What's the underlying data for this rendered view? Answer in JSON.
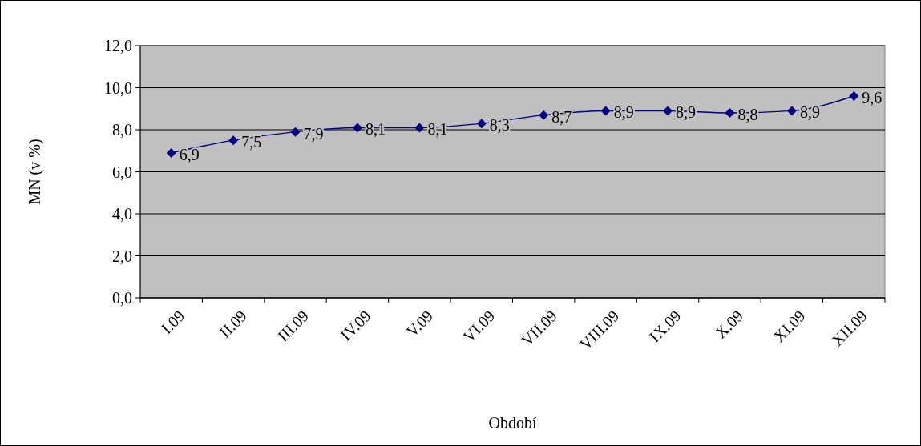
{
  "chart_data": {
    "type": "line",
    "xlabel": "Období",
    "ylabel": "MN (v %)",
    "categories": [
      "I.09",
      "II.09",
      "III.09",
      "IV.09",
      "V.09",
      "VI.09",
      "VII.09",
      "VIII.09",
      "IX.09",
      "X.09",
      "XI.09",
      "XII.09"
    ],
    "series": [
      {
        "color": "#000080",
        "values": [
          6.9,
          7.5,
          7.9,
          8.1,
          8.1,
          8.3,
          8.7,
          8.9,
          8.9,
          8.8,
          8.9,
          9.6
        ],
        "value_labels": [
          "6,9",
          "7,5",
          "7,9",
          "8,1",
          "8,1",
          "8,3",
          "8,7",
          "8,9",
          "8,9",
          "8,8",
          "8,9",
          "9,6"
        ]
      }
    ],
    "ylim": [
      0,
      12
    ],
    "yticks": [
      {
        "value": 0,
        "label": "0,0"
      },
      {
        "value": 2,
        "label": "2,0"
      },
      {
        "value": 4,
        "label": "4,0"
      },
      {
        "value": 6,
        "label": "6,0"
      },
      {
        "value": 8,
        "label": "8,0"
      },
      {
        "value": 10,
        "label": "10,0"
      },
      {
        "value": 12,
        "label": "12,0"
      }
    ],
    "grid": "y",
    "marker": "diamond",
    "line_style": "solid"
  }
}
